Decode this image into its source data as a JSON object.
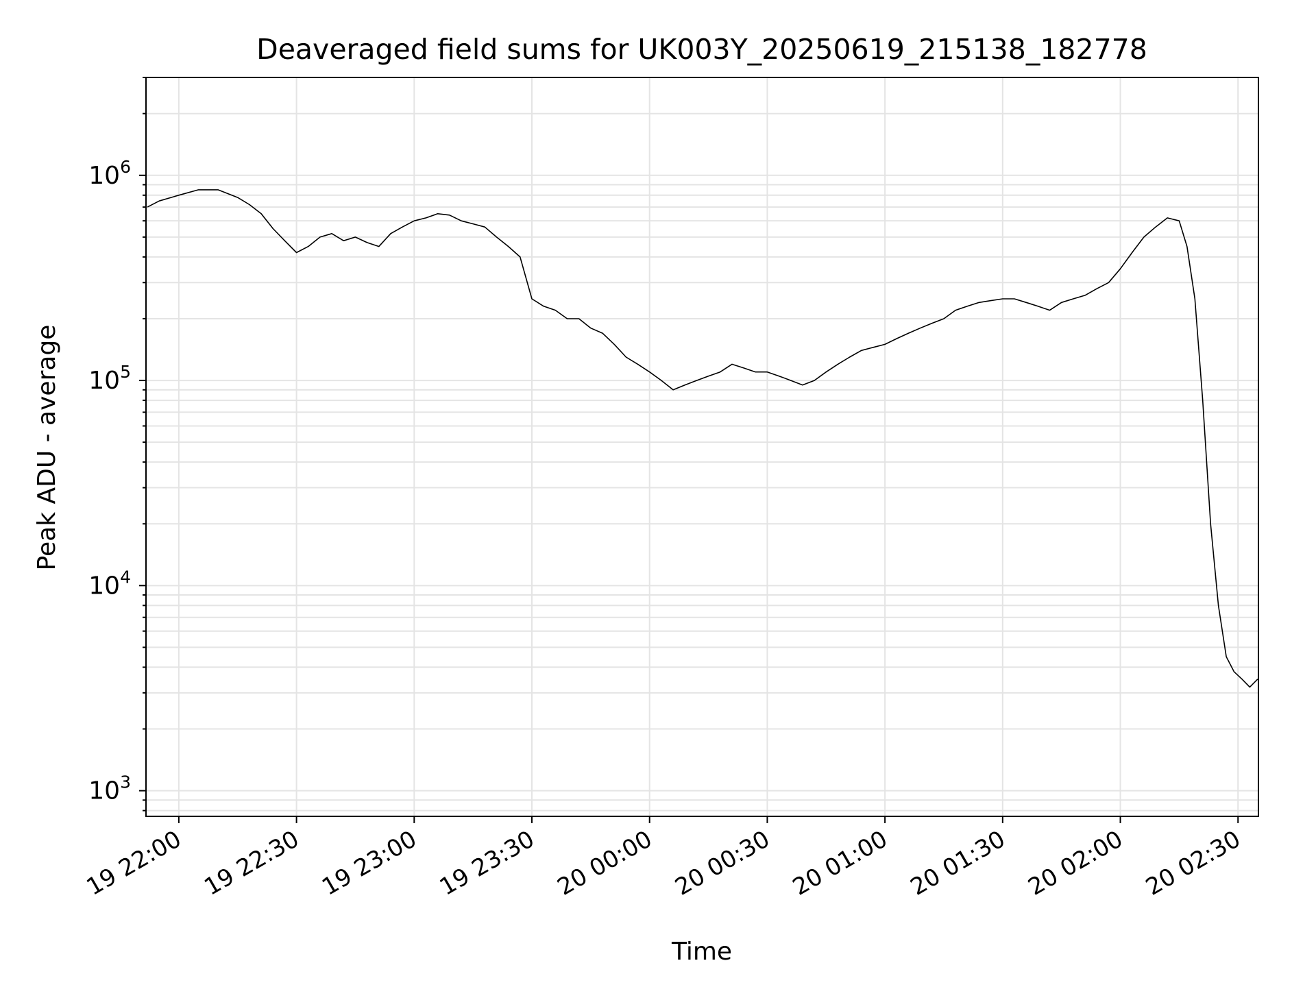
{
  "chart_data": {
    "type": "line",
    "title": "Deaveraged field sums for UK003Y_20250619_215138_182778",
    "xlabel": "Time",
    "ylabel": "Peak ADU - average",
    "y_scale": "log",
    "ylim": [
      750,
      3000000
    ],
    "xlim": [
      "2025-06-19 21:51:38",
      "2025-06-20 02:35:12"
    ],
    "grid": true,
    "line_color": "#000000",
    "x_ticks": [
      {
        "t": "2025-06-19 22:00",
        "label": "19 22:00"
      },
      {
        "t": "2025-06-19 22:30",
        "label": "19 22:30"
      },
      {
        "t": "2025-06-19 23:00",
        "label": "19 23:00"
      },
      {
        "t": "2025-06-19 23:30",
        "label": "19 23:30"
      },
      {
        "t": "2025-06-20 00:00",
        "label": "20 00:00"
      },
      {
        "t": "2025-06-20 00:30",
        "label": "20 00:30"
      },
      {
        "t": "2025-06-20 01:00",
        "label": "20 01:00"
      },
      {
        "t": "2025-06-20 01:30",
        "label": "20 01:30"
      },
      {
        "t": "2025-06-20 02:00",
        "label": "20 02:00"
      },
      {
        "t": "2025-06-20 02:30",
        "label": "20 02:30"
      }
    ],
    "y_ticks": [
      {
        "value": 1000,
        "base": "10",
        "exp": "3"
      },
      {
        "value": 10000,
        "base": "10",
        "exp": "4"
      },
      {
        "value": 100000,
        "base": "10",
        "exp": "5"
      },
      {
        "value": 1000000,
        "base": "10",
        "exp": "6"
      }
    ],
    "series": [
      {
        "x": [
          "2025-06-19 21:52",
          "2025-06-19 21:55",
          "2025-06-19 22:00",
          "2025-06-19 22:05",
          "2025-06-19 22:10",
          "2025-06-19 22:15",
          "2025-06-19 22:18",
          "2025-06-19 22:21",
          "2025-06-19 22:24",
          "2025-06-19 22:27",
          "2025-06-19 22:30",
          "2025-06-19 22:33",
          "2025-06-19 22:36",
          "2025-06-19 22:39",
          "2025-06-19 22:42",
          "2025-06-19 22:45",
          "2025-06-19 22:48",
          "2025-06-19 22:51",
          "2025-06-19 22:54",
          "2025-06-19 22:57",
          "2025-06-19 23:00",
          "2025-06-19 23:03",
          "2025-06-19 23:06",
          "2025-06-19 23:09",
          "2025-06-19 23:12",
          "2025-06-19 23:15",
          "2025-06-19 23:18",
          "2025-06-19 23:21",
          "2025-06-19 23:24",
          "2025-06-19 23:27",
          "2025-06-19 23:30",
          "2025-06-19 23:33",
          "2025-06-19 23:36",
          "2025-06-19 23:39",
          "2025-06-19 23:42",
          "2025-06-19 23:45",
          "2025-06-19 23:48",
          "2025-06-19 23:51",
          "2025-06-19 23:54",
          "2025-06-19 23:57",
          "2025-06-20 00:00",
          "2025-06-20 00:03",
          "2025-06-20 00:06",
          "2025-06-20 00:09",
          "2025-06-20 00:12",
          "2025-06-20 00:15",
          "2025-06-20 00:18",
          "2025-06-20 00:21",
          "2025-06-20 00:24",
          "2025-06-20 00:27",
          "2025-06-20 00:30",
          "2025-06-20 00:33",
          "2025-06-20 00:36",
          "2025-06-20 00:39",
          "2025-06-20 00:42",
          "2025-06-20 00:45",
          "2025-06-20 00:48",
          "2025-06-20 00:51",
          "2025-06-20 00:54",
          "2025-06-20 00:57",
          "2025-06-20 01:00",
          "2025-06-20 01:03",
          "2025-06-20 01:06",
          "2025-06-20 01:09",
          "2025-06-20 01:12",
          "2025-06-20 01:15",
          "2025-06-20 01:18",
          "2025-06-20 01:21",
          "2025-06-20 01:24",
          "2025-06-20 01:27",
          "2025-06-20 01:30",
          "2025-06-20 01:33",
          "2025-06-20 01:36",
          "2025-06-20 01:39",
          "2025-06-20 01:42",
          "2025-06-20 01:45",
          "2025-06-20 01:48",
          "2025-06-20 01:51",
          "2025-06-20 01:54",
          "2025-06-20 01:57",
          "2025-06-20 02:00",
          "2025-06-20 02:03",
          "2025-06-20 02:06",
          "2025-06-20 02:09",
          "2025-06-20 02:12",
          "2025-06-20 02:15",
          "2025-06-20 02:17",
          "2025-06-20 02:19",
          "2025-06-20 02:21",
          "2025-06-20 02:23",
          "2025-06-20 02:25",
          "2025-06-20 02:27",
          "2025-06-20 02:29",
          "2025-06-20 02:31",
          "2025-06-20 02:33",
          "2025-06-20 02:35"
        ],
        "y": [
          700000,
          750000,
          800000,
          850000,
          850000,
          780000,
          720000,
          650000,
          550000,
          480000,
          420000,
          450000,
          500000,
          520000,
          480000,
          500000,
          470000,
          450000,
          520000,
          560000,
          600000,
          620000,
          650000,
          640000,
          600000,
          580000,
          560000,
          500000,
          450000,
          400000,
          250000,
          230000,
          220000,
          200000,
          200000,
          180000,
          170000,
          150000,
          130000,
          120000,
          110000,
          100000,
          90000,
          95000,
          100000,
          105000,
          110000,
          120000,
          115000,
          110000,
          110000,
          105000,
          100000,
          95000,
          100000,
          110000,
          120000,
          130000,
          140000,
          145000,
          150000,
          160000,
          170000,
          180000,
          190000,
          200000,
          220000,
          230000,
          240000,
          245000,
          250000,
          250000,
          240000,
          230000,
          220000,
          240000,
          250000,
          260000,
          280000,
          300000,
          350000,
          420000,
          500000,
          560000,
          620000,
          600000,
          450000,
          250000,
          80000,
          20000,
          8000,
          4500,
          3800,
          3500,
          3200,
          3500
        ]
      }
    ]
  }
}
